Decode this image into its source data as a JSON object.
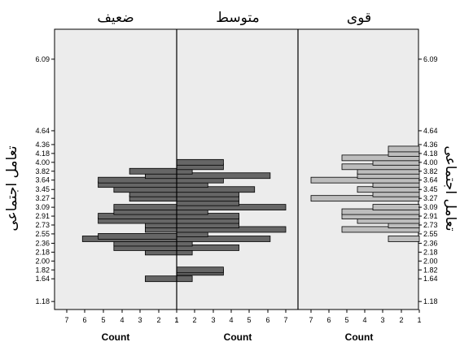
{
  "chart_data": {
    "type": "bar",
    "orientation": "horizontal-mirrored-histogram",
    "y_axis_title": "تعامل اجتماعی",
    "x_axis_title": "Count",
    "grid": false,
    "background": "#ececec",
    "y_ticks": [
      "1.18",
      "1.64",
      "1.82",
      "2.00",
      "2.18",
      "2.36",
      "2.55",
      "2.73",
      "2.91",
      "3.09",
      "3.27",
      "3.45",
      "3.64",
      "3.82",
      "4.00",
      "4.18",
      "4.36",
      "4.64",
      "6.09"
    ],
    "panels": [
      {
        "title": "ضعیف",
        "direction": "left",
        "x_ticks": [
          "7",
          "6",
          "5",
          "4",
          "3",
          "2",
          "1"
        ],
        "bar_color": "#666666",
        "bars": [
          {
            "y": "1.64",
            "count": 2
          },
          {
            "y": "2.18",
            "count": 2
          },
          {
            "y": "2.27",
            "count": 4
          },
          {
            "y": "2.36",
            "count": 4
          },
          {
            "y": "2.45",
            "count": 6
          },
          {
            "y": "2.50",
            "count": 5
          },
          {
            "y": "2.64",
            "count": 2
          },
          {
            "y": "2.73",
            "count": 2
          },
          {
            "y": "2.82",
            "count": 5
          },
          {
            "y": "2.91",
            "count": 5
          },
          {
            "y": "3.00",
            "count": 4
          },
          {
            "y": "3.09",
            "count": 4
          },
          {
            "y": "3.27",
            "count": 3
          },
          {
            "y": "3.36",
            "count": 3
          },
          {
            "y": "3.45",
            "count": 4
          },
          {
            "y": "3.55",
            "count": 5
          },
          {
            "y": "3.64",
            "count": 5
          },
          {
            "y": "3.73",
            "count": 2
          },
          {
            "y": "3.82",
            "count": 3
          }
        ]
      },
      {
        "title": "متوسط",
        "direction": "right",
        "x_ticks": [
          "1",
          "2",
          "3",
          "4",
          "5",
          "6",
          "7"
        ],
        "bar_color": "#666666",
        "bars": [
          {
            "y": "1.64",
            "count": 1
          },
          {
            "y": "1.77",
            "count": 3
          },
          {
            "y": "1.82",
            "count": 3
          },
          {
            "y": "2.18",
            "count": 1
          },
          {
            "y": "2.27",
            "count": 4
          },
          {
            "y": "2.36",
            "count": 1
          },
          {
            "y": "2.45",
            "count": 6
          },
          {
            "y": "2.55",
            "count": 2
          },
          {
            "y": "2.64",
            "count": 7
          },
          {
            "y": "2.73",
            "count": 4
          },
          {
            "y": "2.82",
            "count": 4
          },
          {
            "y": "2.91",
            "count": 4
          },
          {
            "y": "3.00",
            "count": 2
          },
          {
            "y": "3.09",
            "count": 7
          },
          {
            "y": "3.18",
            "count": 4
          },
          {
            "y": "3.27",
            "count": 4
          },
          {
            "y": "3.36",
            "count": 4
          },
          {
            "y": "3.45",
            "count": 5
          },
          {
            "y": "3.55",
            "count": 2
          },
          {
            "y": "3.64",
            "count": 3
          },
          {
            "y": "3.73",
            "count": 6
          },
          {
            "y": "3.82",
            "count": 1
          },
          {
            "y": "3.91",
            "count": 3
          },
          {
            "y": "4.00",
            "count": 3
          }
        ]
      },
      {
        "title": "قوی",
        "direction": "left",
        "x_ticks": [
          "7",
          "6",
          "5",
          "4",
          "3",
          "2",
          "1"
        ],
        "bar_color": "#bdbdbd",
        "bars": [
          {
            "y": "2.45",
            "count": 2
          },
          {
            "y": "2.64",
            "count": 5
          },
          {
            "y": "2.73",
            "count": 2
          },
          {
            "y": "2.82",
            "count": 4
          },
          {
            "y": "2.91",
            "count": 5
          },
          {
            "y": "3.00",
            "count": 5
          },
          {
            "y": "3.09",
            "count": 3
          },
          {
            "y": "3.27",
            "count": 7
          },
          {
            "y": "3.36",
            "count": 3
          },
          {
            "y": "3.45",
            "count": 4
          },
          {
            "y": "3.55",
            "count": 3
          },
          {
            "y": "3.64",
            "count": 7
          },
          {
            "y": "3.73",
            "count": 4
          },
          {
            "y": "3.82",
            "count": 4
          },
          {
            "y": "3.91",
            "count": 5
          },
          {
            "y": "4.00",
            "count": 3
          },
          {
            "y": "4.09",
            "count": 5
          },
          {
            "y": "4.18",
            "count": 2
          },
          {
            "y": "4.27",
            "count": 2
          }
        ]
      }
    ]
  }
}
